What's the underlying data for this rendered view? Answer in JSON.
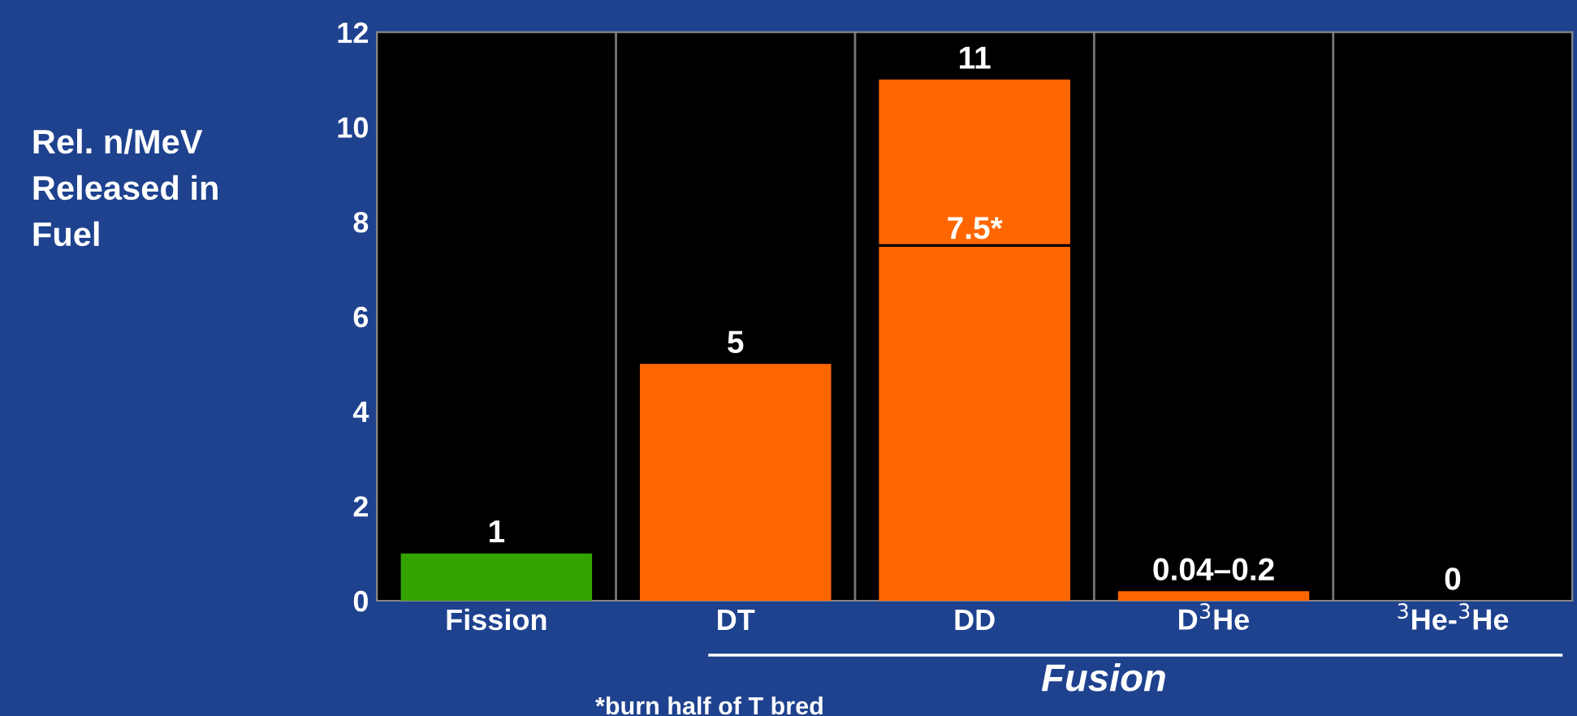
{
  "chart_data": {
    "type": "bar",
    "ylabel": "Rel. n/MeV\nReleased in\nFuel",
    "categories": [
      "Fission",
      "DT",
      "DD",
      "D$^{3}$He",
      "$^{3}$He-$^{3}$He"
    ],
    "values": [
      1,
      5,
      11,
      0.2,
      0
    ],
    "colors": [
      "#33a300",
      "#ff6600",
      "#ff6600",
      "#ff6600",
      "#ff6600"
    ],
    "value_labels": [
      "1",
      "5",
      "11",
      "0.04–0.2",
      "0"
    ],
    "ylim": [
      0,
      12
    ],
    "yticks": [
      0,
      2,
      4,
      6,
      8,
      10,
      12
    ],
    "grid": "x",
    "ref_lines": [
      {
        "axis": "y",
        "value": 7.5,
        "label": "7.5*",
        "color": "#000000"
      }
    ],
    "annotations": [
      "Fusion",
      "*burn half of T bred"
    ]
  }
}
